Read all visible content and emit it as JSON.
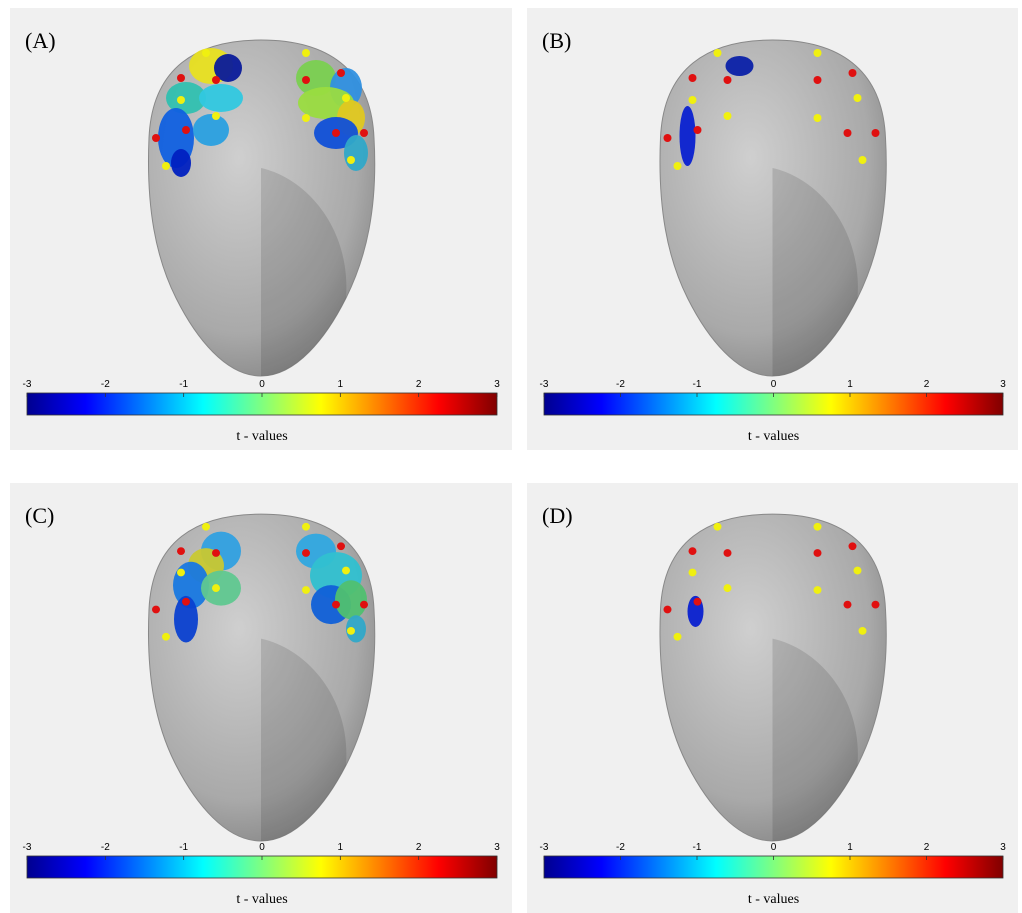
{
  "panels": [
    {
      "label": "(A)",
      "colorbar": {
        "range": [
          -3,
          3
        ],
        "ticks": [
          -3,
          -2,
          -1,
          0,
          1,
          2,
          3
        ],
        "label": "t - values"
      }
    },
    {
      "label": "(B)",
      "colorbar": {
        "range": [
          -3,
          3
        ],
        "ticks": [
          -3,
          -2,
          -1,
          0,
          1,
          2,
          3
        ],
        "label": "t - values"
      }
    },
    {
      "label": "(C)",
      "colorbar": {
        "range": [
          -3,
          3
        ],
        "ticks": [
          -3,
          -2,
          -1,
          0,
          1,
          2,
          3
        ],
        "label": "t - values"
      }
    },
    {
      "label": "(D)",
      "colorbar": {
        "range": [
          -3,
          3
        ],
        "ticks": [
          -3,
          -2,
          -1,
          0,
          1,
          2,
          3
        ],
        "label": "t - values"
      }
    }
  ]
}
